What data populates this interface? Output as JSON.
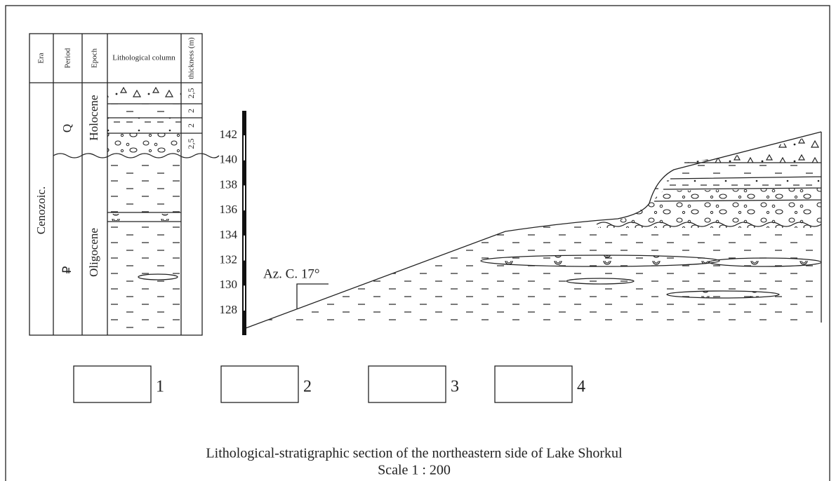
{
  "column": {
    "headers": [
      "Era",
      "Period",
      "Epoch",
      "Lithological column",
      "thickness (m)"
    ],
    "era": "Cenozoic.",
    "periods": [
      "Q",
      "₽"
    ],
    "epochs": [
      "Holocene",
      "Oligocene"
    ],
    "thickness": [
      "2,5",
      "2",
      "2",
      "2,5"
    ]
  },
  "section": {
    "elevations": [
      128,
      130,
      132,
      134,
      136,
      138,
      140,
      142
    ],
    "azimuth": "Az. C. 17°"
  },
  "legend": [
    "1",
    "2",
    "3",
    "4"
  ],
  "caption": {
    "title": "Lithological-stratigraphic section of the northeastern side of Lake Shorkul",
    "scale": "Scale 1 : 200"
  }
}
